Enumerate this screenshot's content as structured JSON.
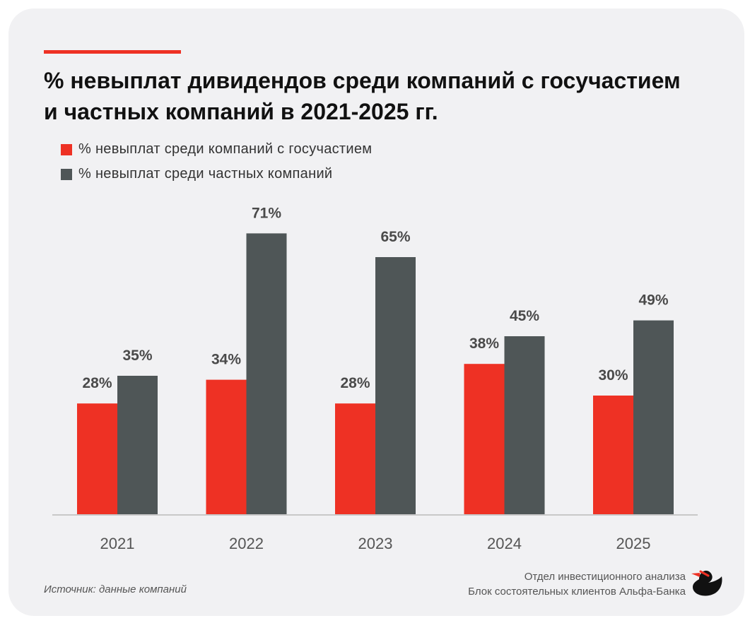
{
  "title": "% невыплат дивидендов среди компаний с госучастием и частных компаний в 2021-2025 гг.",
  "legend": [
    {
      "label": "% невыплат среди компаний с госучастием",
      "color": "#ee3124"
    },
    {
      "label": "% невыплат среди частных компаний",
      "color": "#4f5657"
    }
  ],
  "chart_data": {
    "type": "bar",
    "categories": [
      "2021",
      "2022",
      "2023",
      "2024",
      "2025"
    ],
    "series": [
      {
        "name": "% невыплат среди компаний с госучастием",
        "values": [
          28,
          34,
          28,
          38,
          30
        ],
        "labels": [
          "28%",
          "34%",
          "28%",
          "38%",
          "30%"
        ],
        "color": "#ee3124"
      },
      {
        "name": "% невыплат среди частных компаний",
        "values": [
          35,
          71,
          65,
          45,
          49
        ],
        "labels": [
          "35%",
          "71%",
          "65%",
          "45%",
          "49%"
        ],
        "color": "#4f5657"
      }
    ],
    "ylim": [
      0,
      100
    ],
    "grid": false,
    "legend_placement": "top-left"
  },
  "source": "Источник: данные компаний",
  "org": {
    "line1": "Отдел инвестиционного анализа",
    "line2": "Блок состоятельных клиентов Альфа-Банка"
  },
  "logo_icon": "duck-icon"
}
